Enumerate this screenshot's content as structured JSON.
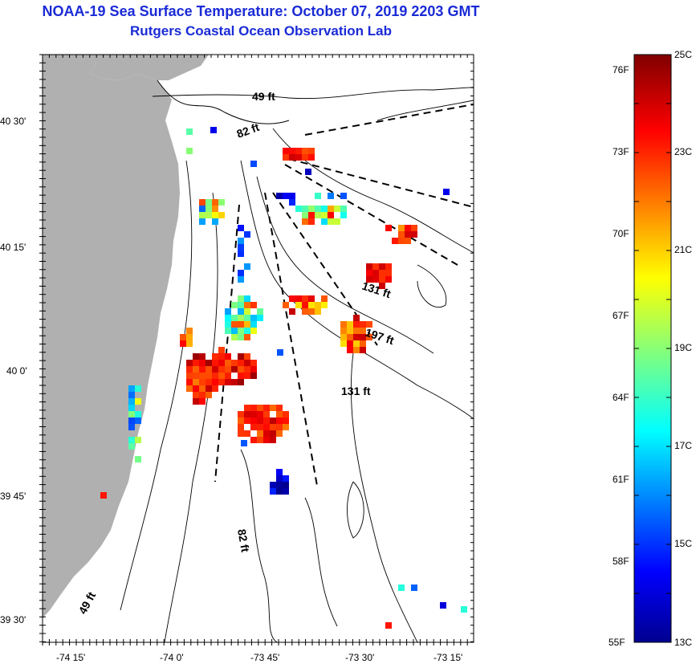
{
  "header": {
    "title": "NOAA-19 Sea Surface Temperature:  October 07, 2019 2203 GMT",
    "subtitle": "Rutgers Coastal Ocean Observation Lab"
  },
  "map": {
    "lat_labels": [
      "40 30'",
      "40 15'",
      "40 0'",
      "39 45'",
      "39 30'"
    ],
    "lon_labels": [
      "-74 15'",
      "-74 0'",
      "-73 45'",
      "-73 30'",
      "-73 15'"
    ],
    "depth_labels": [
      "49 ft",
      "82 ft",
      "131 ft",
      "197 ft",
      "131 ft",
      "82 ft",
      "49 ft"
    ],
    "colors": {
      "land": "#b0b0b0",
      "water": "#ffffff",
      "contour": "#000000",
      "title": "#1a2bd6"
    }
  },
  "colorbar": {
    "fahrenheit_labels": [
      "76F",
      "73F",
      "70F",
      "67F",
      "64F",
      "61F",
      "58F",
      "55F"
    ],
    "celsius_labels": [
      "25C",
      "23C",
      "21C",
      "19C",
      "17C",
      "15C",
      "13C"
    ],
    "range_c": [
      13,
      25
    ],
    "colormap": "jet"
  }
}
